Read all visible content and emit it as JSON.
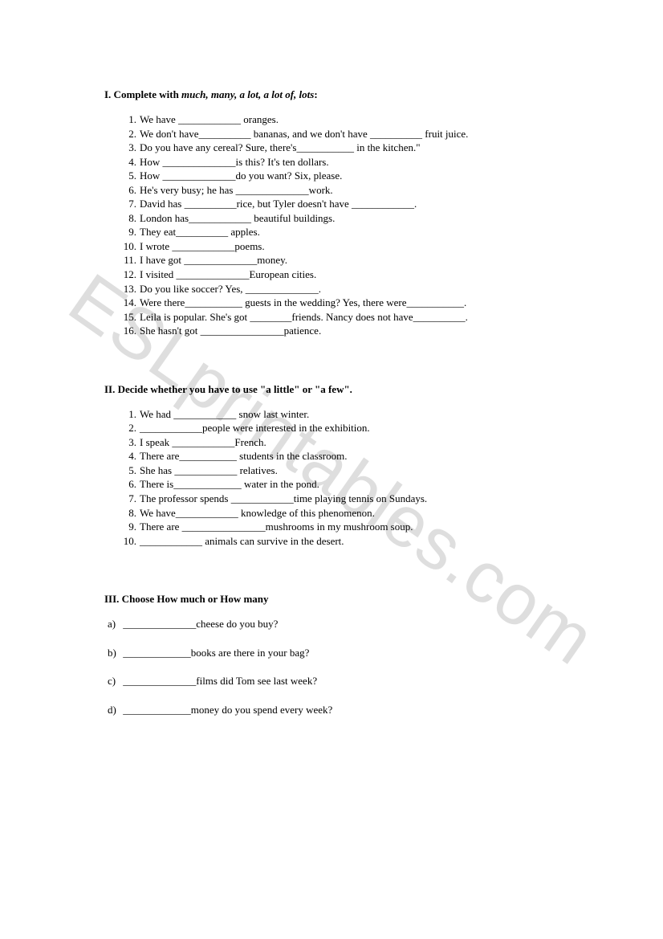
{
  "watermark": "ESLprintables.com",
  "section1": {
    "title_prefix": "I. Complete with ",
    "title_italic": "much, many, a lot, a lot of, lots",
    "title_suffix": ":",
    "items": [
      "We have ____________ oranges.",
      "We don't have__________ bananas, and we don't have __________ fruit juice.",
      "Do you have any cereal? Sure, there's___________ in the kitchen.\"",
      "How ______________is this? It's ten dollars.",
      "How ______________do you want? Six, please.",
      "He's very busy; he has ______________work.",
      "David has __________rice, but Tyler doesn't have ____________.",
      "London has____________ beautiful buildings.",
      "They eat__________ apples.",
      "I wrote ____________poems.",
      "I have got ______________money.",
      "I visited ______________European cities.",
      "Do you like soccer? Yes, ______________.",
      "Were there___________ guests in the wedding? Yes, there were___________.",
      "Leila is popular. She's got ________friends. Nancy does not have__________.",
      "She hasn't got ________________patience."
    ]
  },
  "section2": {
    "title": "II. Decide whether you have to use \"a little\" or \"a few\".",
    "items": [
      "We had ____________ snow last winter.",
      "____________people were interested in the exhibition.",
      "I speak ____________French.",
      "There are___________ students in the classroom.",
      "She has ____________ relatives.",
      "There is_____________ water in the pond.",
      "The professor spends ____________time playing tennis on Sundays.",
      "We have____________ knowledge of this phenomenon.",
      "There are ________________mushrooms in my mushroom soup.",
      "____________ animals can survive in the desert."
    ]
  },
  "section3": {
    "title": "III. Choose How  much or How many",
    "items": [
      {
        "letter": "a)",
        "text": "______________cheese do you buy?"
      },
      {
        "letter": "b)",
        "text": "_____________books are there in your bag?"
      },
      {
        "letter": "c)",
        "text": "______________films did Tom see last week?"
      },
      {
        "letter": "d)",
        "text": "_____________money do you spend every week?"
      }
    ]
  }
}
